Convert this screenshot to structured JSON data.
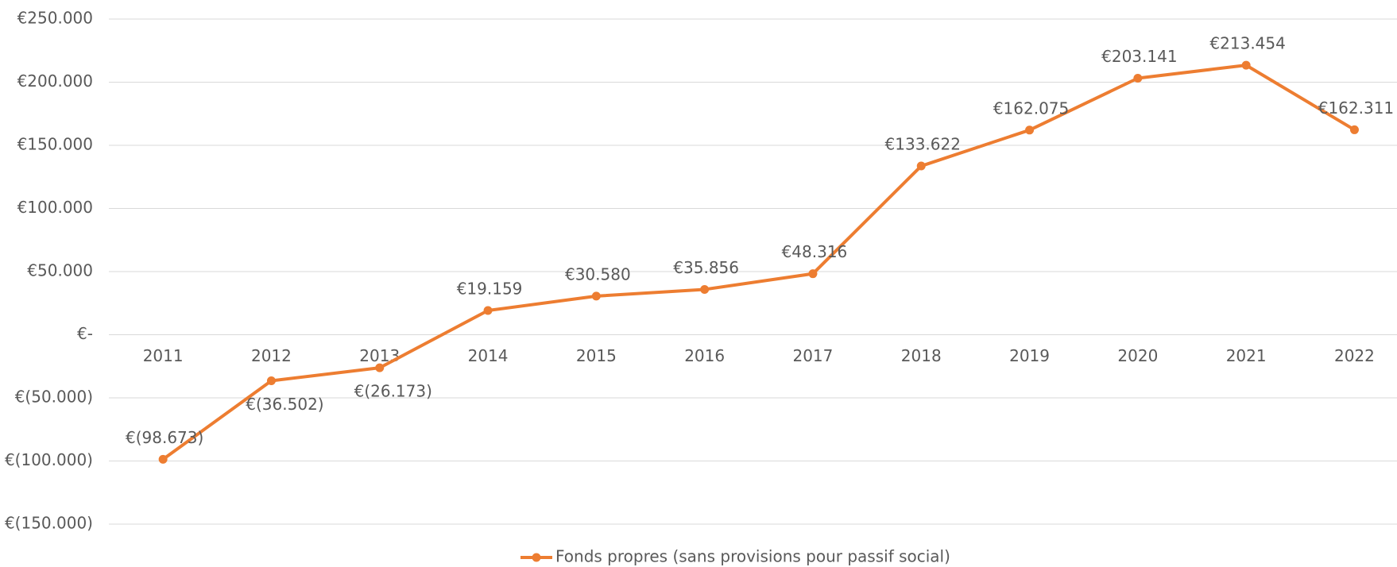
{
  "chart_data": {
    "type": "line",
    "categories": [
      "2011",
      "2012",
      "2013",
      "2014",
      "2015",
      "2016",
      "2017",
      "2018",
      "2019",
      "2020",
      "2021",
      "2022"
    ],
    "series": [
      {
        "name": "Fonds propres (sans provisions pour passif social)",
        "color": "#ED7D31",
        "values": [
          -98673,
          -36502,
          -26173,
          19159,
          30580,
          35856,
          48316,
          133622,
          162075,
          203141,
          213454,
          162311
        ],
        "value_labels": [
          "€(98.673)",
          "€(36.502)",
          "€(26.173)",
          "€19.159",
          "€30.580",
          "€35.856",
          "€48.316",
          "€133.622",
          "€162.075",
          "€203.141",
          "€213.454",
          "€162.311"
        ]
      }
    ],
    "ylim": [
      -150000,
      250000
    ],
    "yticks": [
      {
        "value": -150000,
        "label": "€(150.000)"
      },
      {
        "value": -100000,
        "label": "€(100.000)"
      },
      {
        "value": -50000,
        "label": "€(50.000)"
      },
      {
        "value": 0,
        "label": "€-"
      },
      {
        "value": 50000,
        "label": "€50.000"
      },
      {
        "value": 100000,
        "label": "€100.000"
      },
      {
        "value": 150000,
        "label": "€150.000"
      },
      {
        "value": 200000,
        "label": "€200.000"
      },
      {
        "value": 250000,
        "label": "€250.000"
      }
    ],
    "grid": true,
    "legend": "bottom"
  }
}
